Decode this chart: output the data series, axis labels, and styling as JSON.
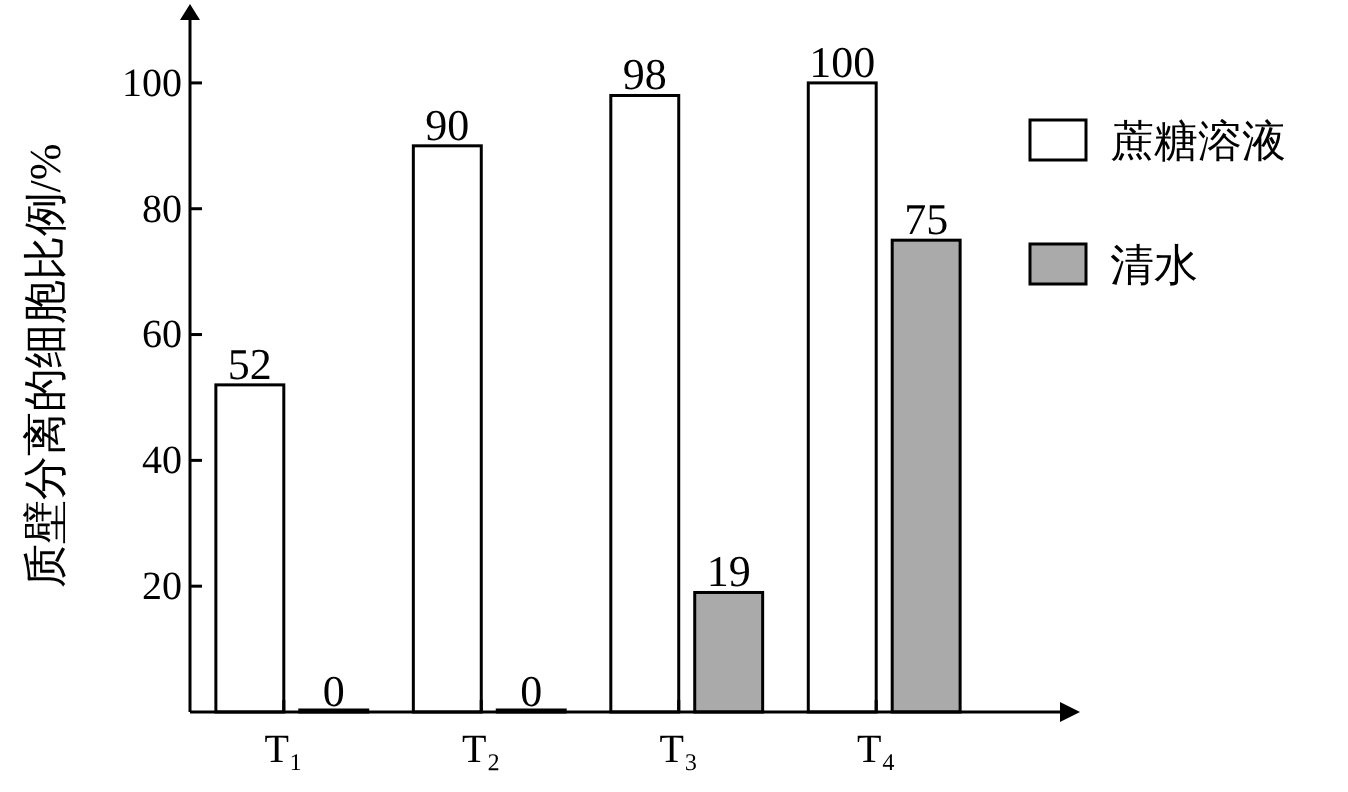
{
  "chart_data": {
    "type": "bar",
    "ylabel": "质壁分离的细胞比例/%",
    "categories": [
      "T₁",
      "T₂",
      "T₃",
      "T₄"
    ],
    "series": [
      {
        "name": "蔗糖溶液",
        "color": "#ffffff",
        "values": [
          52,
          90,
          98,
          100
        ]
      },
      {
        "name": "清水",
        "color": "#aaaaaa",
        "values": [
          0,
          0,
          19,
          75
        ]
      }
    ],
    "ylim": [
      0,
      110
    ],
    "yticks": [
      20,
      40,
      60,
      80,
      100
    ],
    "data_labels": true,
    "legend": "right",
    "grid": false
  }
}
